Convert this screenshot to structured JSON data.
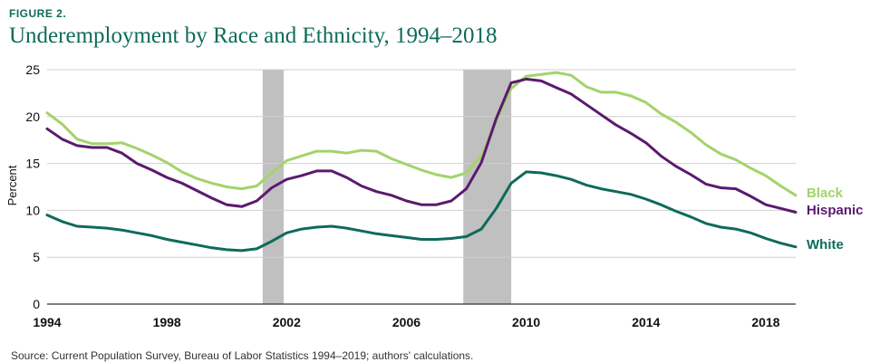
{
  "figure_label": "FIGURE 2.",
  "title": "Underemployment by Race and Ethnicity, 1994–2018",
  "source": "Source: Current Population Survey, Bureau of Labor Statistics 1994–2019; authors' calculations.",
  "colors": {
    "Black": "#a3d36b",
    "Hispanic": "#5b1a6e",
    "White": "#0e6b5a",
    "recession": "#c0c0c0",
    "title": "#0e6b5a"
  },
  "chart_data": {
    "type": "line",
    "title": "Underemployment by Race and Ethnicity, 1994–2018",
    "xlabel": "",
    "ylabel": "Percent",
    "xlim": [
      1994,
      2019
    ],
    "ylim": [
      0,
      25
    ],
    "x_ticks": [
      1994,
      1998,
      2002,
      2006,
      2010,
      2014,
      2018
    ],
    "y_ticks": [
      0,
      5,
      10,
      15,
      20,
      25
    ],
    "grid": true,
    "recessions": [
      [
        2001.2,
        2001.9
      ],
      [
        2007.9,
        2009.5
      ]
    ],
    "series": [
      {
        "name": "Black",
        "x": [
          1994,
          1994.5,
          1995,
          1995.5,
          1996,
          1996.5,
          1997,
          1997.5,
          1998,
          1998.5,
          1999,
          1999.5,
          2000,
          2000.5,
          2001,
          2001.5,
          2002,
          2002.5,
          2003,
          2003.5,
          2004,
          2004.5,
          2005,
          2005.5,
          2006,
          2006.5,
          2007,
          2007.5,
          2008,
          2008.5,
          2009,
          2009.5,
          2010,
          2010.5,
          2011,
          2011.5,
          2012,
          2012.5,
          2013,
          2013.5,
          2014,
          2014.5,
          2015,
          2015.5,
          2016,
          2016.5,
          2017,
          2017.5,
          2018,
          2018.5,
          2019
        ],
        "values": [
          20.4,
          19.2,
          17.6,
          17.1,
          17.1,
          17.2,
          16.6,
          15.9,
          15.1,
          14.1,
          13.4,
          12.9,
          12.5,
          12.3,
          12.6,
          14.0,
          15.3,
          15.8,
          16.3,
          16.3,
          16.1,
          16.4,
          16.3,
          15.5,
          14.9,
          14.3,
          13.8,
          13.5,
          14.0,
          15.8,
          19.5,
          23.0,
          24.3,
          24.5,
          24.7,
          24.4,
          23.2,
          22.6,
          22.6,
          22.2,
          21.5,
          20.3,
          19.4,
          18.3,
          17.0,
          16.0,
          15.4,
          14.5,
          13.7,
          12.6,
          11.6
        ]
      },
      {
        "name": "Hispanic",
        "x": [
          1994,
          1994.5,
          1995,
          1995.5,
          1996,
          1996.5,
          1997,
          1997.5,
          1998,
          1998.5,
          1999,
          1999.5,
          2000,
          2000.5,
          2001,
          2001.5,
          2002,
          2002.5,
          2003,
          2003.5,
          2004,
          2004.5,
          2005,
          2005.5,
          2006,
          2006.5,
          2007,
          2007.5,
          2008,
          2008.5,
          2009,
          2009.5,
          2010,
          2010.5,
          2011,
          2011.5,
          2012,
          2012.5,
          2013,
          2013.5,
          2014,
          2014.5,
          2015,
          2015.5,
          2016,
          2016.5,
          2017,
          2017.5,
          2018,
          2018.5,
          2019
        ],
        "values": [
          18.7,
          17.6,
          16.9,
          16.7,
          16.7,
          16.1,
          15.0,
          14.3,
          13.5,
          12.9,
          12.1,
          11.3,
          10.6,
          10.4,
          11.0,
          12.4,
          13.3,
          13.7,
          14.2,
          14.2,
          13.5,
          12.6,
          12.0,
          11.6,
          11.0,
          10.6,
          10.6,
          11.0,
          12.3,
          15.1,
          19.8,
          23.6,
          24.0,
          23.8,
          23.1,
          22.4,
          21.3,
          20.2,
          19.1,
          18.2,
          17.2,
          15.8,
          14.7,
          13.8,
          12.8,
          12.4,
          12.3,
          11.5,
          10.6,
          10.2,
          9.8
        ]
      },
      {
        "name": "White",
        "x": [
          1994,
          1994.5,
          1995,
          1995.5,
          1996,
          1996.5,
          1997,
          1997.5,
          1998,
          1998.5,
          1999,
          1999.5,
          2000,
          2000.5,
          2001,
          2001.5,
          2002,
          2002.5,
          2003,
          2003.5,
          2004,
          2004.5,
          2005,
          2005.5,
          2006,
          2006.5,
          2007,
          2007.5,
          2008,
          2008.5,
          2009,
          2009.5,
          2010,
          2010.5,
          2011,
          2011.5,
          2012,
          2012.5,
          2013,
          2013.5,
          2014,
          2014.5,
          2015,
          2015.5,
          2016,
          2016.5,
          2017,
          2017.5,
          2018,
          2018.5,
          2019
        ],
        "values": [
          9.5,
          8.8,
          8.3,
          8.2,
          8.1,
          7.9,
          7.6,
          7.3,
          6.9,
          6.6,
          6.3,
          6.0,
          5.8,
          5.7,
          5.9,
          6.7,
          7.6,
          8.0,
          8.2,
          8.3,
          8.1,
          7.8,
          7.5,
          7.3,
          7.1,
          6.9,
          6.9,
          7.0,
          7.2,
          8.0,
          10.2,
          12.9,
          14.1,
          14.0,
          13.7,
          13.3,
          12.7,
          12.3,
          12.0,
          11.7,
          11.2,
          10.6,
          9.9,
          9.3,
          8.6,
          8.2,
          8.0,
          7.6,
          7.0,
          6.5,
          6.1
        ]
      }
    ]
  }
}
